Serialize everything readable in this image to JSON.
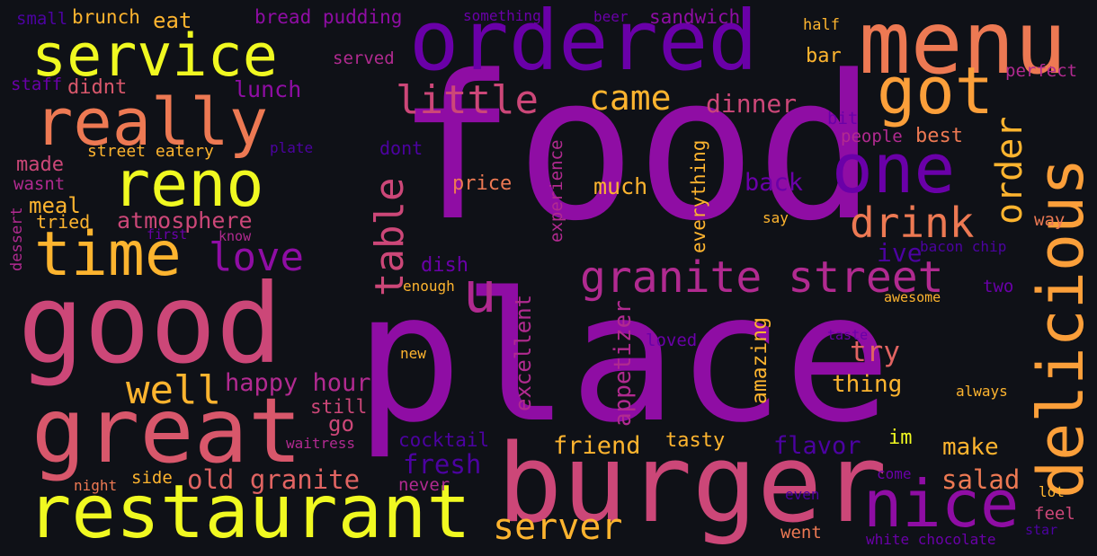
{
  "words": {
    "food": {
      "text": "food",
      "color": "#8f0da4"
    },
    "place": {
      "text": "place",
      "color": "#8f0da4"
    },
    "good": {
      "text": "good",
      "color": "#cc4778"
    },
    "burger": {
      "text": "burger",
      "color": "#cc4778"
    },
    "restaurant": {
      "text": "restaurant",
      "color": "#f0f921"
    },
    "great": {
      "text": "great",
      "color": "#d8576b"
    },
    "ordered": {
      "text": "ordered",
      "color": "#6a00a8"
    },
    "menu": {
      "text": "menu",
      "color": "#ed7953"
    },
    "delicious": {
      "text": "delicious",
      "color": "#fb9f3a"
    },
    "really": {
      "text": "really",
      "color": "#ed7953"
    },
    "service": {
      "text": "service",
      "color": "#f0f921"
    },
    "reno": {
      "text": "reno",
      "color": "#f0f921"
    },
    "time": {
      "text": "time",
      "color": "#fdb42f"
    },
    "got": {
      "text": "got",
      "color": "#fb9f3a"
    },
    "one": {
      "text": "one",
      "color": "#6a00a8"
    },
    "nice": {
      "text": "nice",
      "color": "#8f0da4"
    },
    "granite_street": {
      "text": "granite street",
      "color": "#b12a90"
    },
    "u": {
      "text": "u",
      "color": "#b12a90"
    },
    "drink": {
      "text": "drink",
      "color": "#ed7953"
    },
    "little": {
      "text": "little",
      "color": "#cc4778"
    },
    "came": {
      "text": "came",
      "color": "#fdb42f"
    },
    "love": {
      "text": "love",
      "color": "#8f0da4"
    },
    "well": {
      "text": "well",
      "color": "#fdb42f"
    },
    "order": {
      "text": "order",
      "color": "#fdb42f"
    },
    "table": {
      "text": "table",
      "color": "#cc4778"
    },
    "server": {
      "text": "server",
      "color": "#fdb42f"
    },
    "old_granite": {
      "text": "old granite",
      "color": "#e16462"
    },
    "happy_hour": {
      "text": "happy hour",
      "color": "#b12a90"
    },
    "atmosphere": {
      "text": "atmosphere",
      "color": "#cc4778"
    },
    "lunch": {
      "text": "lunch",
      "color": "#8f0da4"
    },
    "dinner": {
      "text": "dinner",
      "color": "#cc4778"
    },
    "fresh": {
      "text": "fresh",
      "color": "#4c02a1"
    },
    "salad": {
      "text": "salad",
      "color": "#ed7953"
    },
    "friend": {
      "text": "friend",
      "color": "#fdb42f"
    },
    "flavor": {
      "text": "flavor",
      "color": "#4c02a1"
    },
    "tasty": {
      "text": "tasty",
      "color": "#fdb42f"
    },
    "make": {
      "text": "make",
      "color": "#fdb42f"
    },
    "thing": {
      "text": "thing",
      "color": "#fdb42f"
    },
    "try": {
      "text": "try",
      "color": "#e16462"
    },
    "ive": {
      "text": "ive",
      "color": "#4c02a1"
    },
    "much": {
      "text": "much",
      "color": "#fdb42f"
    },
    "back": {
      "text": "back",
      "color": "#6a00a8"
    },
    "price": {
      "text": "price",
      "color": "#ed7953"
    },
    "dish": {
      "text": "dish",
      "color": "#6a00a8"
    },
    "cocktail": {
      "text": "cocktail",
      "color": "#4c02a1"
    },
    "meal": {
      "text": "meal",
      "color": "#fdb42f"
    },
    "made": {
      "text": "made",
      "color": "#cc4778"
    },
    "tried": {
      "text": "tried",
      "color": "#fdb42f"
    },
    "didnt": {
      "text": "didnt",
      "color": "#d8576b"
    },
    "lunch2": {
      "text": "",
      "color": "#000000"
    },
    "brunch": {
      "text": "brunch",
      "color": "#fdb42f"
    },
    "eat": {
      "text": "eat",
      "color": "#fdb42f"
    },
    "bread_pudding": {
      "text": "bread pudding",
      "color": "#8f0da4"
    },
    "something": {
      "text": "something",
      "color": "#6a00a8"
    },
    "beer": {
      "text": "beer",
      "color": "#6a00a8"
    },
    "sandwich": {
      "text": "sandwich",
      "color": "#8f0da4"
    },
    "half": {
      "text": "half",
      "color": "#fdb42f"
    },
    "bar": {
      "text": "bar",
      "color": "#fdb42f"
    },
    "served": {
      "text": "served",
      "color": "#b12a90"
    },
    "perfect": {
      "text": "perfect",
      "color": "#b12a90"
    },
    "staff": {
      "text": "staff",
      "color": "#6a00a8"
    },
    "small": {
      "text": "small",
      "color": "#4c02a1"
    },
    "street_eatery": {
      "text": "street eatery",
      "color": "#fdb42f"
    },
    "plate": {
      "text": "plate",
      "color": "#4c02a1"
    },
    "dont": {
      "text": "dont",
      "color": "#4c02a1"
    },
    "bit": {
      "text": "bit",
      "color": "#6a00a8"
    },
    "people": {
      "text": "people",
      "color": "#b12a90"
    },
    "best": {
      "text": "best",
      "color": "#ed7953"
    },
    "wasnt": {
      "text": "wasnt",
      "color": "#b12a90"
    },
    "experience": {
      "text": "experience",
      "color": "#b12a90"
    },
    "everything": {
      "text": "everything",
      "color": "#fdb42f"
    },
    "say": {
      "text": "say",
      "color": "#fdb42f"
    },
    "way": {
      "text": "way",
      "color": "#ed7953"
    },
    "bacon_chip": {
      "text": "bacon chip",
      "color": "#4c02a1"
    },
    "two": {
      "text": "two",
      "color": "#6a00a8"
    },
    "awesome": {
      "text": "awesome",
      "color": "#fdb42f"
    },
    "enough": {
      "text": "enough",
      "color": "#fdb42f"
    },
    "first": {
      "text": "first",
      "color": "#6a00a8"
    },
    "know": {
      "text": "know",
      "color": "#b12a90"
    },
    "dessert": {
      "text": "dessert",
      "color": "#b12a90"
    },
    "appetizer": {
      "text": "appetizer",
      "color": "#b12a90"
    },
    "excellent": {
      "text": "excellent",
      "color": "#b12a90"
    },
    "amazing": {
      "text": "amazing",
      "color": "#fdb42f"
    },
    "loved": {
      "text": "loved",
      "color": "#6a00a8"
    },
    "taste": {
      "text": "taste",
      "color": "#6a00a8"
    },
    "always": {
      "text": "always",
      "color": "#fdb42f"
    },
    "new": {
      "text": "new",
      "color": "#fdb42f"
    },
    "still": {
      "text": "still",
      "color": "#cc4778"
    },
    "go": {
      "text": "go",
      "color": "#cc4778"
    },
    "waitress": {
      "text": "waitress",
      "color": "#b12a90"
    },
    "side": {
      "text": "side",
      "color": "#fdb42f"
    },
    "night": {
      "text": "night",
      "color": "#ed7953"
    },
    "never": {
      "text": "never",
      "color": "#b12a90"
    },
    "im": {
      "text": "im",
      "color": "#f0f921"
    },
    "come": {
      "text": "come",
      "color": "#6a00a8"
    },
    "even": {
      "text": "even",
      "color": "#4c02a1"
    },
    "lot": {
      "text": "lot",
      "color": "#fdb42f"
    },
    "feel": {
      "text": "feel",
      "color": "#cc4778"
    },
    "went": {
      "text": "went",
      "color": "#ed7953"
    },
    "white_chocolate": {
      "text": "white chocolate",
      "color": "#6a00a8"
    },
    "star": {
      "text": "star",
      "color": "#4c02a1"
    }
  }
}
